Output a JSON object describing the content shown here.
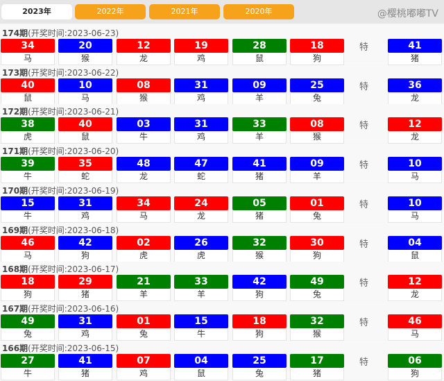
{
  "tabs": [
    "2023年",
    "2022年",
    "2021年",
    "2020年"
  ],
  "active_tab": 0,
  "colors": {
    "r": "#fe0000",
    "b": "#0000fe",
    "g": "#008000"
  },
  "special_label": "特",
  "watermark": "@樱桃嘟嘟TV",
  "draws": [
    {
      "issue": "174期",
      "time": "(开奖时间:2023-06-23)",
      "balls": [
        [
          "34",
          "r",
          "马"
        ],
        [
          "20",
          "b",
          "猴"
        ],
        [
          "12",
          "r",
          "龙"
        ],
        [
          "19",
          "r",
          "鸡"
        ],
        [
          "28",
          "g",
          "鼠"
        ],
        [
          "18",
          "r",
          "狗"
        ]
      ],
      "special": [
        "41",
        "b",
        "猪"
      ]
    },
    {
      "issue": "173期",
      "time": "(开奖时间:2023-06-22)",
      "balls": [
        [
          "40",
          "r",
          "鼠"
        ],
        [
          "10",
          "b",
          "马"
        ],
        [
          "08",
          "r",
          "猴"
        ],
        [
          "31",
          "b",
          "鸡"
        ],
        [
          "09",
          "b",
          "羊"
        ],
        [
          "25",
          "b",
          "兔"
        ]
      ],
      "special": [
        "36",
        "b",
        "龙"
      ]
    },
    {
      "issue": "172期",
      "time": "(开奖时间:2023-06-21)",
      "balls": [
        [
          "38",
          "g",
          "虎"
        ],
        [
          "40",
          "r",
          "鼠"
        ],
        [
          "03",
          "b",
          "牛"
        ],
        [
          "31",
          "b",
          "鸡"
        ],
        [
          "33",
          "g",
          "羊"
        ],
        [
          "08",
          "r",
          "猴"
        ]
      ],
      "special": [
        "12",
        "r",
        "龙"
      ]
    },
    {
      "issue": "171期",
      "time": "(开奖时间:2023-06-20)",
      "balls": [
        [
          "39",
          "g",
          "牛"
        ],
        [
          "35",
          "r",
          "蛇"
        ],
        [
          "48",
          "b",
          "龙"
        ],
        [
          "47",
          "b",
          "蛇"
        ],
        [
          "41",
          "b",
          "猪"
        ],
        [
          "09",
          "b",
          "羊"
        ]
      ],
      "special": [
        "10",
        "b",
        "马"
      ]
    },
    {
      "issue": "170期",
      "time": "(开奖时间:2023-06-19)",
      "balls": [
        [
          "15",
          "b",
          "牛"
        ],
        [
          "31",
          "b",
          "鸡"
        ],
        [
          "34",
          "r",
          "马"
        ],
        [
          "24",
          "r",
          "龙"
        ],
        [
          "05",
          "g",
          "猪"
        ],
        [
          "01",
          "r",
          "兔"
        ]
      ],
      "special": [
        "10",
        "b",
        "马"
      ]
    },
    {
      "issue": "169期",
      "time": "(开奖时间:2023-06-18)",
      "balls": [
        [
          "46",
          "r",
          "马"
        ],
        [
          "42",
          "b",
          "狗"
        ],
        [
          "02",
          "r",
          "虎"
        ],
        [
          "26",
          "b",
          "虎"
        ],
        [
          "32",
          "g",
          "猴"
        ],
        [
          "30",
          "r",
          "狗"
        ]
      ],
      "special": [
        "04",
        "b",
        "鼠"
      ]
    },
    {
      "issue": "168期",
      "time": "(开奖时间:2023-06-17)",
      "balls": [
        [
          "18",
          "r",
          "狗"
        ],
        [
          "29",
          "r",
          "猪"
        ],
        [
          "21",
          "g",
          "羊"
        ],
        [
          "33",
          "g",
          "羊"
        ],
        [
          "42",
          "b",
          "狗"
        ],
        [
          "49",
          "g",
          "兔"
        ]
      ],
      "special": [
        "12",
        "r",
        "龙"
      ]
    },
    {
      "issue": "167期",
      "time": "(开奖时间:2023-06-16)",
      "balls": [
        [
          "49",
          "g",
          "兔"
        ],
        [
          "31",
          "b",
          "鸡"
        ],
        [
          "01",
          "r",
          "兔"
        ],
        [
          "15",
          "b",
          "牛"
        ],
        [
          "18",
          "r",
          "狗"
        ],
        [
          "32",
          "g",
          "猴"
        ]
      ],
      "special": [
        "46",
        "r",
        "马"
      ]
    },
    {
      "issue": "166期",
      "time": "(开奖时间:2023-06-15)",
      "balls": [
        [
          "27",
          "g",
          "牛"
        ],
        [
          "41",
          "b",
          "猪"
        ],
        [
          "07",
          "r",
          "鸡"
        ],
        [
          "04",
          "b",
          "鼠"
        ],
        [
          "25",
          "b",
          "兔"
        ],
        [
          "17",
          "g",
          "猪"
        ]
      ],
      "special": [
        "06",
        "g",
        "狗"
      ]
    }
  ]
}
